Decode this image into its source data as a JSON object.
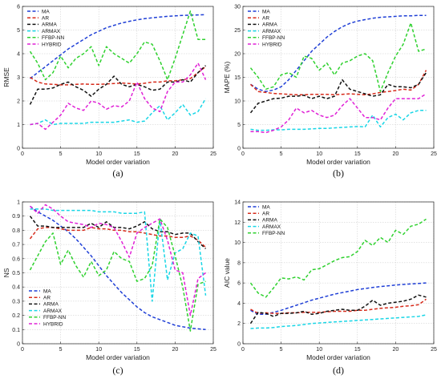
{
  "chart_data": [
    {
      "type": "line",
      "caption": "(a)",
      "xlabel": "Model order variation",
      "ylabel": "RMSE",
      "xlim": [
        0,
        25
      ],
      "ylim": [
        0,
        6
      ],
      "xticks": [
        0,
        5,
        10,
        15,
        20,
        25
      ],
      "yticks": [
        0,
        1,
        2,
        3,
        4,
        5,
        6
      ],
      "grid": true,
      "legend": "top-left",
      "x": [
        1,
        2,
        3,
        4,
        5,
        6,
        7,
        8,
        9,
        10,
        11,
        12,
        13,
        14,
        15,
        16,
        17,
        18,
        19,
        20,
        21,
        22,
        23,
        24
      ],
      "series": [
        {
          "name": "MA",
          "color": "#1f3fd6",
          "values": [
            2.95,
            3.2,
            3.45,
            3.7,
            3.95,
            4.2,
            4.4,
            4.6,
            4.8,
            4.95,
            5.1,
            5.2,
            5.3,
            5.37,
            5.43,
            5.48,
            5.52,
            5.55,
            5.58,
            5.6,
            5.62,
            5.63,
            5.64,
            5.65
          ]
        },
        {
          "name": "AR",
          "color": "#d62a1a",
          "values": [
            3.0,
            2.8,
            2.72,
            2.7,
            2.68,
            2.68,
            2.7,
            2.72,
            2.7,
            2.7,
            2.72,
            2.74,
            2.76,
            2.74,
            2.72,
            2.75,
            2.8,
            2.8,
            2.85,
            2.85,
            2.9,
            2.95,
            3.2,
            3.45
          ]
        },
        {
          "name": "ARMA",
          "color": "#111111",
          "values": [
            1.85,
            2.5,
            2.5,
            2.55,
            2.7,
            2.8,
            2.6,
            2.45,
            2.2,
            2.5,
            2.7,
            3.05,
            2.7,
            2.6,
            2.7,
            2.6,
            2.45,
            2.5,
            2.8,
            2.8,
            2.9,
            2.8,
            3.2,
            3.5
          ]
        },
        {
          "name": "ARMAX",
          "color": "#19d6e6",
          "values": [
            1.0,
            1.05,
            1.2,
            1.0,
            1.05,
            1.05,
            1.05,
            1.05,
            1.1,
            1.1,
            1.1,
            1.1,
            1.15,
            1.2,
            1.1,
            1.15,
            1.5,
            1.8,
            1.2,
            1.5,
            1.85,
            1.4,
            1.55,
            2.1
          ]
        },
        {
          "name": "FFBP-NN",
          "color": "#2fd12f",
          "values": [
            4.1,
            3.6,
            2.9,
            3.2,
            3.9,
            3.4,
            3.8,
            4.0,
            4.3,
            3.5,
            4.3,
            4.0,
            3.8,
            3.6,
            4.0,
            4.5,
            4.4,
            3.7,
            2.9,
            3.8,
            4.8,
            5.8,
            4.6,
            4.6
          ]
        },
        {
          "name": "HYBRID",
          "color": "#e021d6",
          "values": [
            1.0,
            1.05,
            0.8,
            1.1,
            1.4,
            1.9,
            1.7,
            1.6,
            2.0,
            1.9,
            1.65,
            1.8,
            1.75,
            2.0,
            2.8,
            2.1,
            1.7,
            1.55,
            2.4,
            2.8,
            2.8,
            3.1,
            3.6,
            2.9
          ]
        }
      ]
    },
    {
      "type": "line",
      "caption": "(b)",
      "xlabel": "Model order variation",
      "ylabel": "MAPE (%)",
      "xlim": [
        0,
        25
      ],
      "ylim": [
        0,
        30
      ],
      "xticks": [
        0,
        5,
        10,
        15,
        20,
        25
      ],
      "yticks": [
        0,
        5,
        10,
        15,
        20,
        25,
        30
      ],
      "grid": true,
      "legend": "top-left",
      "x": [
        1,
        2,
        3,
        4,
        5,
        6,
        7,
        8,
        9,
        10,
        11,
        12,
        13,
        14,
        15,
        16,
        17,
        18,
        19,
        20,
        21,
        22,
        23,
        24
      ],
      "series": [
        {
          "name": "MA",
          "color": "#1f3fd6",
          "values": [
            13.5,
            12.5,
            12.0,
            12.3,
            13.0,
            14.5,
            16.5,
            18.5,
            20.5,
            22.0,
            23.5,
            24.7,
            25.7,
            26.4,
            26.9,
            27.2,
            27.5,
            27.7,
            27.8,
            27.9,
            28.0,
            28.0,
            28.1,
            28.1
          ]
        },
        {
          "name": "AR",
          "color": "#d62a1a",
          "values": [
            13.5,
            12.0,
            11.8,
            11.6,
            11.5,
            11.4,
            11.3,
            11.3,
            11.4,
            11.4,
            11.4,
            11.3,
            11.4,
            11.5,
            11.4,
            11.3,
            11.5,
            11.8,
            12.0,
            12.2,
            12.5,
            12.3,
            13.5,
            16.5
          ]
        },
        {
          "name": "ARMA",
          "color": "#111111",
          "values": [
            7.5,
            9.5,
            10.0,
            10.5,
            10.6,
            11.0,
            11.0,
            11.2,
            10.5,
            11.0,
            10.5,
            11.0,
            14.5,
            12.5,
            12.0,
            11.5,
            11.0,
            11.3,
            13.5,
            13.0,
            13.0,
            12.8,
            13.5,
            16.0
          ]
        },
        {
          "name": "ARMAX",
          "color": "#19d6e6",
          "values": [
            4.0,
            3.8,
            3.8,
            3.9,
            3.9,
            4.0,
            4.0,
            4.0,
            4.1,
            4.2,
            4.2,
            4.3,
            4.4,
            4.5,
            4.6,
            4.5,
            7.0,
            4.5,
            6.5,
            7.2,
            6.0,
            7.5,
            8.0,
            8.0
          ]
        },
        {
          "name": "FFBP-NN",
          "color": "#2fd12f",
          "values": [
            17.0,
            15.0,
            12.5,
            13.0,
            15.5,
            16.0,
            15.0,
            19.5,
            19.0,
            16.5,
            18.0,
            15.5,
            18.0,
            18.5,
            19.5,
            20.0,
            18.5,
            12.0,
            16.0,
            19.5,
            22.0,
            26.5,
            20.5,
            21.0
          ]
        },
        {
          "name": "HYBRID",
          "color": "#e021d6",
          "values": [
            3.5,
            3.5,
            3.3,
            3.8,
            4.5,
            6.0,
            8.5,
            7.5,
            8.0,
            7.0,
            6.5,
            7.0,
            9.0,
            10.5,
            8.5,
            6.5,
            6.5,
            6.0,
            8.5,
            10.5,
            10.5,
            10.5,
            10.5,
            11.5
          ]
        }
      ]
    },
    {
      "type": "line",
      "caption": "(c)",
      "xlabel": "Model order variation",
      "ylabel": "NS",
      "xlim": [
        0,
        25
      ],
      "ylim": [
        0,
        1
      ],
      "xticks": [
        0,
        5,
        10,
        15,
        20,
        25
      ],
      "yticks": [
        0,
        0.1,
        0.2,
        0.3,
        0.4,
        0.5,
        0.6,
        0.7,
        0.8,
        0.9,
        1
      ],
      "grid": true,
      "legend": "bottom-left",
      "x": [
        1,
        2,
        3,
        4,
        5,
        6,
        7,
        8,
        9,
        10,
        11,
        12,
        13,
        14,
        15,
        16,
        17,
        18,
        19,
        20,
        21,
        22,
        23,
        24
      ],
      "series": [
        {
          "name": "MA",
          "color": "#1f3fd6",
          "values": [
            0.97,
            0.93,
            0.9,
            0.87,
            0.83,
            0.79,
            0.74,
            0.68,
            0.62,
            0.55,
            0.48,
            0.42,
            0.36,
            0.31,
            0.26,
            0.22,
            0.19,
            0.17,
            0.15,
            0.13,
            0.12,
            0.11,
            0.105,
            0.1
          ]
        },
        {
          "name": "AR",
          "color": "#d62a1a",
          "values": [
            0.74,
            0.81,
            0.82,
            0.82,
            0.81,
            0.8,
            0.8,
            0.8,
            0.82,
            0.81,
            0.81,
            0.8,
            0.8,
            0.79,
            0.79,
            0.78,
            0.77,
            0.76,
            0.76,
            0.75,
            0.75,
            0.76,
            0.73,
            0.68
          ]
        },
        {
          "name": "ARMA",
          "color": "#111111",
          "values": [
            0.9,
            0.83,
            0.83,
            0.82,
            0.82,
            0.82,
            0.82,
            0.82,
            0.85,
            0.82,
            0.86,
            0.82,
            0.82,
            0.81,
            0.83,
            0.86,
            0.81,
            0.79,
            0.79,
            0.77,
            0.78,
            0.78,
            0.72,
            0.67
          ]
        },
        {
          "name": "ARMAX",
          "color": "#19d6e6",
          "values": [
            0.95,
            0.95,
            0.95,
            0.94,
            0.94,
            0.94,
            0.94,
            0.94,
            0.94,
            0.93,
            0.93,
            0.93,
            0.92,
            0.92,
            0.92,
            0.93,
            0.3,
            0.88,
            0.45,
            0.64,
            0.67,
            0.78,
            0.76,
            0.34
          ]
        },
        {
          "name": "FFBP-NN",
          "color": "#2fd12f",
          "values": [
            0.52,
            0.62,
            0.72,
            0.78,
            0.56,
            0.66,
            0.55,
            0.47,
            0.58,
            0.48,
            0.52,
            0.65,
            0.6,
            0.58,
            0.44,
            0.46,
            0.55,
            0.88,
            0.82,
            0.62,
            0.4,
            0.09,
            0.42,
            0.44
          ]
        },
        {
          "name": "HYBRID",
          "color": "#e021d6",
          "values": [
            0.97,
            0.92,
            0.98,
            0.95,
            0.9,
            0.86,
            0.85,
            0.84,
            0.82,
            0.85,
            0.84,
            0.82,
            0.72,
            0.61,
            0.78,
            0.82,
            0.85,
            0.88,
            0.73,
            0.52,
            0.5,
            0.2,
            0.46,
            0.5
          ]
        }
      ]
    },
    {
      "type": "line",
      "caption": "(d)",
      "xlabel": "Model order variation",
      "ylabel": "AIC value",
      "xlim": [
        0,
        25
      ],
      "ylim": [
        0,
        14
      ],
      "xticks": [
        0,
        5,
        10,
        15,
        20,
        25
      ],
      "yticks": [
        0,
        2,
        4,
        6,
        8,
        10,
        12,
        14
      ],
      "grid": true,
      "legend": "top-left",
      "x": [
        1,
        2,
        3,
        4,
        5,
        6,
        7,
        8,
        9,
        10,
        11,
        12,
        13,
        14,
        15,
        16,
        17,
        18,
        19,
        20,
        21,
        22,
        23,
        24
      ],
      "series": [
        {
          "name": "MA",
          "color": "#1f3fd6",
          "values": [
            3.3,
            2.9,
            2.9,
            3.1,
            3.3,
            3.55,
            3.8,
            4.05,
            4.3,
            4.5,
            4.7,
            4.9,
            5.05,
            5.2,
            5.35,
            5.45,
            5.55,
            5.65,
            5.72,
            5.8,
            5.85,
            5.9,
            5.95,
            6.0
          ]
        },
        {
          "name": "AR",
          "color": "#d62a1a",
          "values": [
            3.4,
            3.0,
            3.05,
            3.0,
            3.0,
            3.05,
            3.05,
            3.1,
            3.1,
            3.1,
            3.15,
            3.2,
            3.2,
            3.2,
            3.3,
            3.3,
            3.4,
            3.5,
            3.55,
            3.6,
            3.7,
            3.75,
            3.85,
            4.4
          ]
        },
        {
          "name": "ARMA",
          "color": "#111111",
          "values": [
            2.0,
            3.1,
            3.0,
            2.7,
            3.0,
            3.0,
            3.05,
            3.2,
            2.9,
            3.0,
            3.2,
            3.3,
            3.4,
            3.3,
            3.3,
            3.7,
            4.3,
            3.8,
            4.0,
            4.1,
            4.2,
            4.4,
            4.8,
            4.6
          ]
        },
        {
          "name": "ARMAX",
          "color": "#19d6e6",
          "values": [
            1.5,
            1.55,
            1.55,
            1.6,
            1.7,
            1.75,
            1.8,
            1.9,
            2.0,
            2.05,
            2.1,
            2.15,
            2.2,
            2.25,
            2.3,
            2.35,
            2.4,
            2.45,
            2.5,
            2.55,
            2.6,
            2.65,
            2.7,
            2.85
          ]
        },
        {
          "name": "FFBP-NN",
          "color": "#2fd12f",
          "values": [
            6.0,
            5.0,
            4.6,
            5.5,
            6.5,
            6.4,
            6.6,
            6.3,
            7.3,
            7.4,
            7.8,
            8.2,
            8.5,
            8.6,
            9.1,
            10.2,
            9.7,
            10.5,
            10.0,
            11.2,
            10.8,
            11.6,
            11.8,
            12.3
          ]
        }
      ]
    }
  ]
}
